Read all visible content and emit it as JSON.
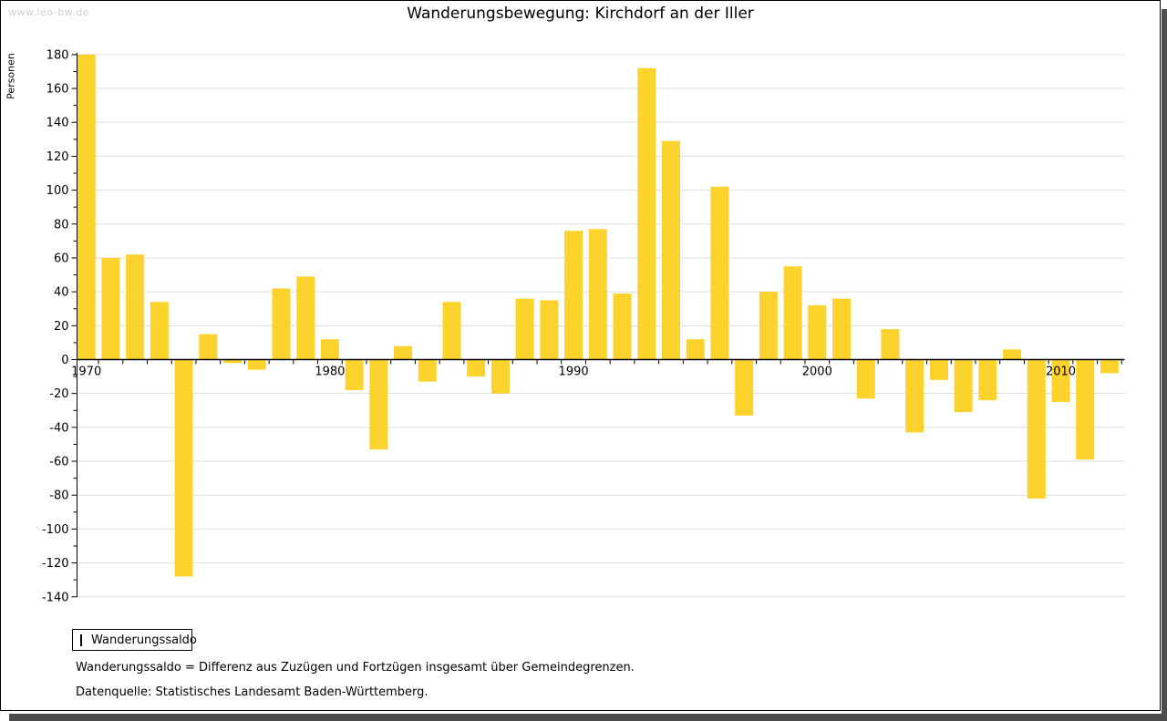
{
  "watermark": "www.leo-bw.de",
  "footnotes": {
    "line1": "Wanderungssaldo = Differenz aus Zuzügen und Fortzügen insgesamt über Gemeindegrenzen.",
    "line2": "Datenquelle: Statistisches Landesamt Baden-Württemberg."
  },
  "colors": {
    "bar": "#FCD32C",
    "grid": "#dddddd",
    "axis": "#000000",
    "shadow": "#4d4d4d",
    "watermark": "#cfcfcf"
  },
  "chart_data": {
    "type": "bar",
    "title": "Wanderungsbewegung: Kirchdorf an der Iller",
    "ylabel": "Personen",
    "xlabel": "",
    "ylim": [
      -140,
      180
    ],
    "ytick_step": 20,
    "ytick_minor_step": 10,
    "grid": true,
    "bar_color": "#FCD32C",
    "legend": {
      "label": "Wanderungssaldo",
      "position": "bottom-left"
    },
    "xticks_labeled": [
      1970,
      1980,
      1990,
      2000,
      2010
    ],
    "years": [
      1970,
      1971,
      1972,
      1973,
      1974,
      1975,
      1976,
      1977,
      1978,
      1979,
      1980,
      1981,
      1982,
      1983,
      1984,
      1985,
      1986,
      1987,
      1988,
      1989,
      1990,
      1991,
      1992,
      1993,
      1994,
      1995,
      1996,
      1997,
      1998,
      1999,
      2000,
      2001,
      2002,
      2003,
      2004,
      2005,
      2006,
      2007,
      2008,
      2009,
      2010,
      2011,
      2012
    ],
    "values": [
      180,
      60,
      62,
      34,
      -128,
      15,
      -2,
      -6,
      42,
      49,
      12,
      -18,
      -53,
      8,
      -13,
      34,
      -10,
      -20,
      36,
      35,
      76,
      77,
      39,
      172,
      129,
      12,
      102,
      -33,
      40,
      55,
      32,
      36,
      -23,
      18,
      -43,
      -12,
      -31,
      -24,
      6,
      -82,
      -25,
      -59,
      -8
    ],
    "series_name": "Wanderungssaldo"
  }
}
